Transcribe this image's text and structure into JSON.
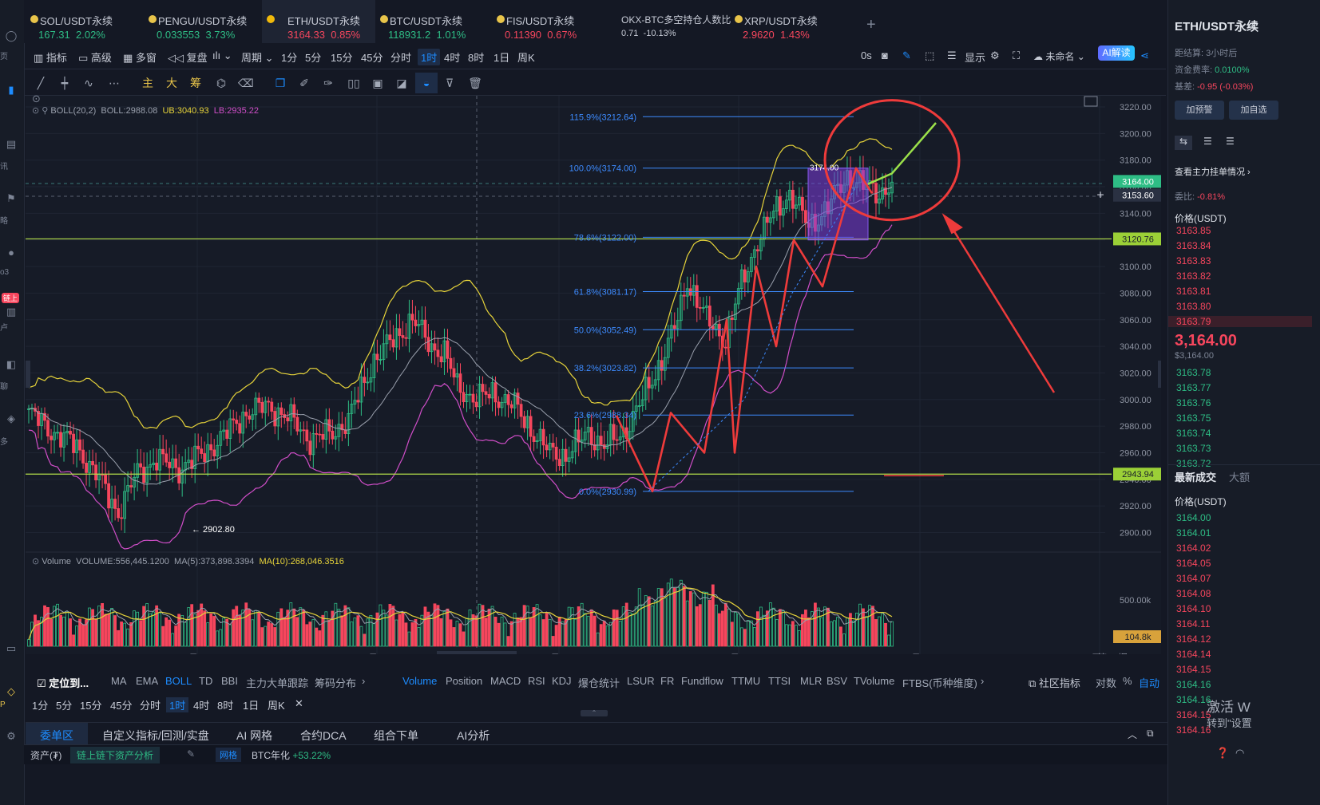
{
  "tickers": [
    {
      "name": "SOL/USDT永续",
      "price": "167.31",
      "change": "2.02%",
      "dir": "up"
    },
    {
      "name": "PENGU/USDT永续",
      "price": "0.033553",
      "change": "3.73%",
      "dir": "up"
    },
    {
      "name": "ETH/USDT永续",
      "price": "3164.33",
      "change": "0.85%",
      "dir": "dn",
      "active": true
    },
    {
      "name": "BTC/USDT永续",
      "price": "118931.2",
      "change": "1.01%",
      "dir": "up"
    },
    {
      "name": "FIS/USDT永续",
      "price": "0.11390",
      "change": "0.67%",
      "dir": "dn"
    },
    {
      "name": "OKX-BTC多空持仓人数比",
      "price": "0.71",
      "change": "-10.13%",
      "dir": "neutral"
    },
    {
      "name": "XRP/USDT永续",
      "price": "2.9620",
      "change": "1.43%",
      "dir": "dn"
    }
  ],
  "toolbar": {
    "indicators": "指标",
    "advanced": "高级",
    "multi_window": "多窗",
    "replay": "复盘",
    "period": "周期",
    "timeframes": [
      "1分",
      "5分",
      "15分",
      "45分",
      "分时",
      "1时",
      "4时",
      "8时",
      "1日",
      "周K"
    ],
    "active_tf": "1时",
    "countdown": "0s",
    "display": "显示",
    "unnamed": "未命名",
    "ai_label": "AI解读"
  },
  "draw_tools": [
    "主",
    "大",
    "筹"
  ],
  "chart": {
    "boll_label": "BOLL(20,2)",
    "boll_mid": "BOLL:2988.08",
    "boll_ub": "UB:3040.93",
    "boll_lb": "LB:2935.22",
    "vol_label": "Volume",
    "vol_values": "VOLUME:556,445.1200",
    "vol_ma5": "MA(5):373,898.3394",
    "vol_ma10": "MA(10):268,046.3516",
    "price_axis": [
      "3220.00",
      "3200.00",
      "3180.00",
      "3160.00",
      "3140.00",
      "3120.00",
      "3100.00",
      "3080.00",
      "3060.00",
      "3040.00",
      "3020.00",
      "3000.00",
      "2980.00",
      "2960.00",
      "2940.00",
      "2920.00",
      "2900.00"
    ],
    "vol_axis": "500.00k",
    "vol_tag": "104.8k",
    "tags": {
      "current": "3164.00",
      "crosshair": "3153.60",
      "line1": "3120.76",
      "line2": "2943.94"
    },
    "fib_levels": [
      {
        "label": "115.9%(3212.64)",
        "price": 3212.64
      },
      {
        "label": "100.0%(3174.00)",
        "price": 3174.0
      },
      {
        "label": "78.6%(3122.00)",
        "price": 3122.0
      },
      {
        "label": "61.8%(3081.17)",
        "price": 3081.17
      },
      {
        "label": "50.0%(3052.49)",
        "price": 3052.49
      },
      {
        "label": "38.2%(3023.82)",
        "price": 3023.82
      },
      {
        "label": "23.6%(2988.34)",
        "price": 2988.34
      },
      {
        "label": "0.0%(2930.99)",
        "price": 2930.99
      }
    ],
    "box_label": "3174.00",
    "low_label": "← 2902.80",
    "date_labels": [
      "7月 13",
      "7月 14",
      "7月 15",
      "7月 16",
      "7月 17",
      "7月 18"
    ],
    "crosshair_date": "2025-07-14 13:00",
    "bottom_right": [
      "筹",
      "爆"
    ],
    "colors": {
      "up": "#2ebd85",
      "down": "#f6465d",
      "fib": "#3d8bff",
      "boll_ub": "#e6d33a",
      "boll_mid": "#9aa0ad",
      "boll_lb": "#d04ec8",
      "hline": "#b5e04a",
      "annot": "#ee3b3b",
      "projection": "#9be04a"
    }
  },
  "indicator_bar": {
    "locate": "定位到...",
    "main": [
      "MA",
      "EMA",
      "BOLL",
      "TD",
      "BBI",
      "主力大单跟踪",
      "筹码分布"
    ],
    "sub": [
      "Volume",
      "Position",
      "MACD",
      "RSI",
      "KDJ",
      "爆仓统计",
      "LSUR",
      "FR",
      "Fundflow",
      "TTMU",
      "TTSI",
      "MLR",
      "BSV",
      "TVolume",
      "FTBS(币种维度)"
    ],
    "community": "社区指标",
    "log": "对数",
    "pct": "%",
    "auto": "自动"
  },
  "bottom_tabs": [
    "委单区",
    "自定义指标/回测/实盘",
    "AI 网格",
    "合约DCA",
    "组合下单",
    "AI分析"
  ],
  "status": {
    "assets": "资产(₮)",
    "analysis": "链上链下资产分析",
    "grid": "网格",
    "btc": "BTC年化",
    "btc_val": "+53.22%"
  },
  "right_panel": {
    "title": "ETH/USDT永续",
    "settle_label": "距结算:",
    "settle": "3小时后",
    "fee_label": "资金费率:",
    "fee": "0.0100%",
    "basis_label": "基差:",
    "basis": "-0.95 (-0.03%)",
    "btn_alert": "加预警",
    "btn_add": "加自选",
    "depth_title": "查看主力挂单情况",
    "ratio_label": "委比:",
    "ratio": "-0.81%",
    "price_hdr": "价格(USDT)",
    "asks": [
      "3163.85",
      "3163.84",
      "3163.83",
      "3163.82",
      "3163.81",
      "3163.80",
      "3163.79"
    ],
    "last": "3,164.00",
    "last_sub": "$3,164.00",
    "bids": [
      "3163.78",
      "3163.77",
      "3163.76",
      "3163.75",
      "3163.74",
      "3163.73",
      "3163.72"
    ],
    "trades_title": "最新成交",
    "trades_tab2": "大额",
    "trades_hdr": "价格(USDT)",
    "trades": [
      {
        "p": "3164.00",
        "d": "up"
      },
      {
        "p": "3164.01",
        "d": "up"
      },
      {
        "p": "3164.02",
        "d": "dn"
      },
      {
        "p": "3164.05",
        "d": "dn"
      },
      {
        "p": "3164.07",
        "d": "dn"
      },
      {
        "p": "3164.08",
        "d": "dn"
      },
      {
        "p": "3164.10",
        "d": "dn"
      },
      {
        "p": "3164.11",
        "d": "dn"
      },
      {
        "p": "3164.12",
        "d": "dn"
      },
      {
        "p": "3164.14",
        "d": "dn"
      },
      {
        "p": "3164.15",
        "d": "dn"
      },
      {
        "p": "3164.16",
        "d": "up"
      },
      {
        "p": "3164.16",
        "d": "up"
      },
      {
        "p": "3164.15",
        "d": "dn"
      },
      {
        "p": "3164.16",
        "d": "dn"
      }
    ],
    "watermark1": "激活 W",
    "watermark2": "转到\"设置"
  },
  "left_labels": [
    "页",
    "讯",
    "略",
    "o3",
    "链上",
    "卢",
    "聊",
    "多",
    "P"
  ]
}
